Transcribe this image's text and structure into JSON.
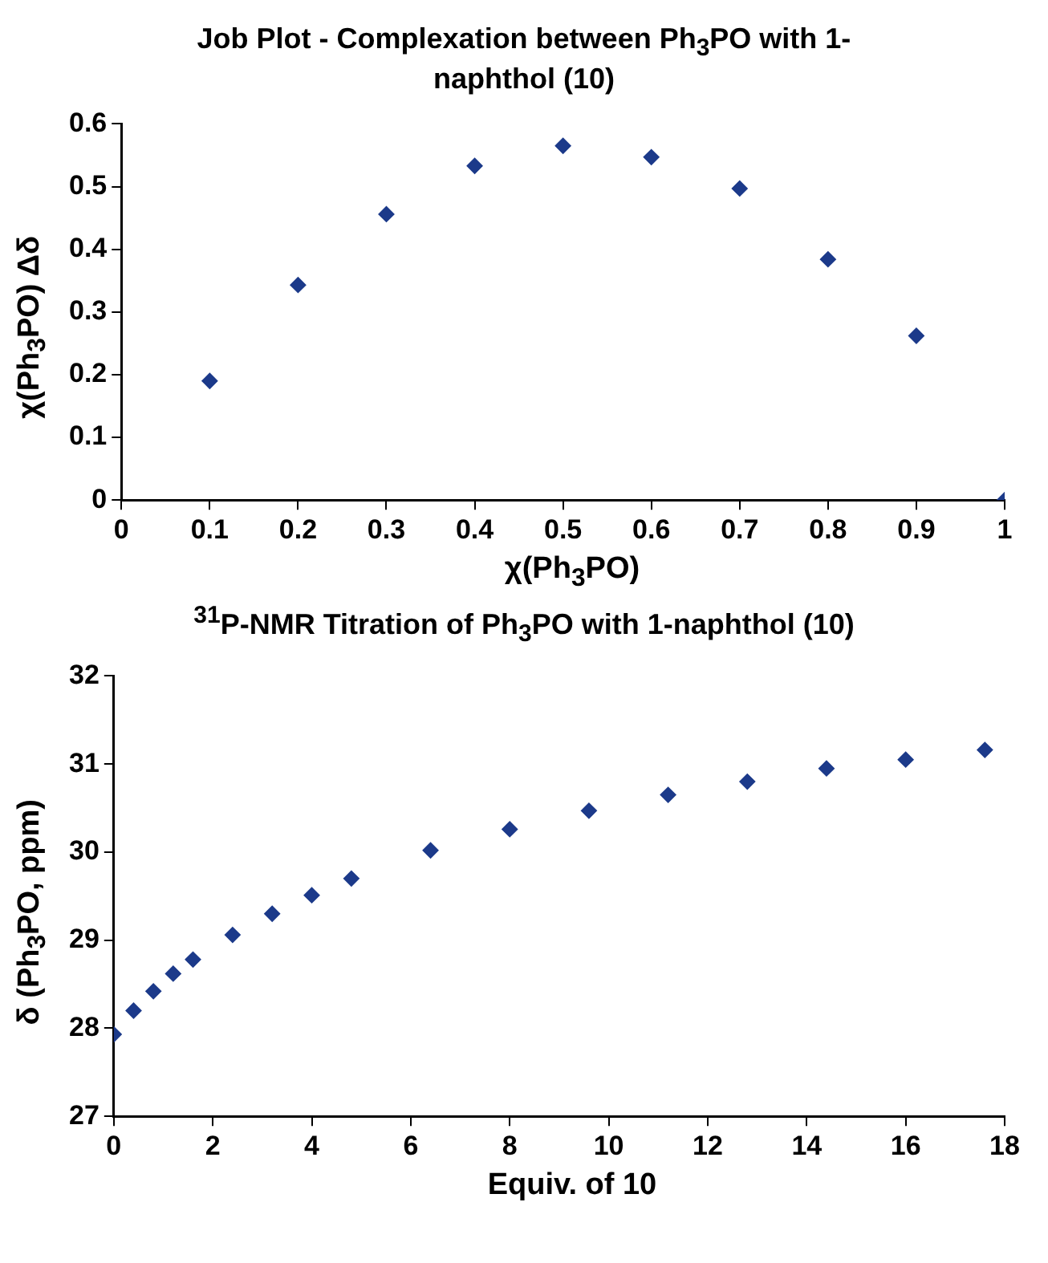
{
  "chart_data": [
    {
      "type": "scatter",
      "title": "Job Plot - Complexation between Ph$_{3}$PO with 1-naphthol (10)",
      "xlabel": "χ(Ph$_{3}$PO)",
      "ylabel": "χ(Ph$_{3}$PO) Δδ",
      "marker": "diamond",
      "x": [
        0.1,
        0.2,
        0.3,
        0.4,
        0.5,
        0.6,
        0.7,
        0.8,
        0.9,
        1
      ],
      "series": [
        {
          "color": "#1c3a8a",
          "values": [
            0.19,
            0.343,
            0.456,
            0.533,
            0.565,
            0.547,
            0.497,
            0.384,
            0.262,
            0
          ]
        }
      ],
      "xlim": [
        0,
        1
      ],
      "xticks": [
        0,
        0.1,
        0.2,
        0.3,
        0.4,
        0.5,
        0.6,
        0.7,
        0.8,
        0.9,
        1
      ],
      "ylim": [
        0,
        0.6
      ],
      "yticks": [
        0,
        0.1,
        0.2,
        0.3,
        0.4,
        0.5,
        0.6
      ]
    },
    {
      "type": "scatter",
      "title": "$^{31}$P-NMR Titration of Ph$_{3}$PO with 1-naphthol (10)",
      "xlabel": "Equiv. of 10",
      "ylabel": "δ (Ph$_{3}$PO, ppm)",
      "marker": "diamond",
      "x": [
        0,
        0.4,
        0.8,
        1.2,
        1.6,
        2.4,
        3.2,
        4,
        4.8,
        6.4,
        8,
        9.6,
        11.2,
        12.8,
        14.4,
        16,
        17.6
      ],
      "series": [
        {
          "color": "#1c3a8a",
          "values": [
            27.93,
            28.2,
            28.42,
            28.62,
            28.78,
            29.06,
            29.3,
            29.51,
            29.7,
            30.02,
            30.26,
            30.47,
            30.65,
            30.8,
            30.95,
            31.05,
            31.16
          ]
        }
      ],
      "xlim": [
        0,
        18
      ],
      "xticks": [
        0,
        2,
        4,
        6,
        8,
        10,
        12,
        14,
        16,
        18
      ],
      "ylim": [
        27,
        32
      ],
      "yticks": [
        27,
        28,
        29,
        30,
        31,
        32
      ]
    }
  ]
}
